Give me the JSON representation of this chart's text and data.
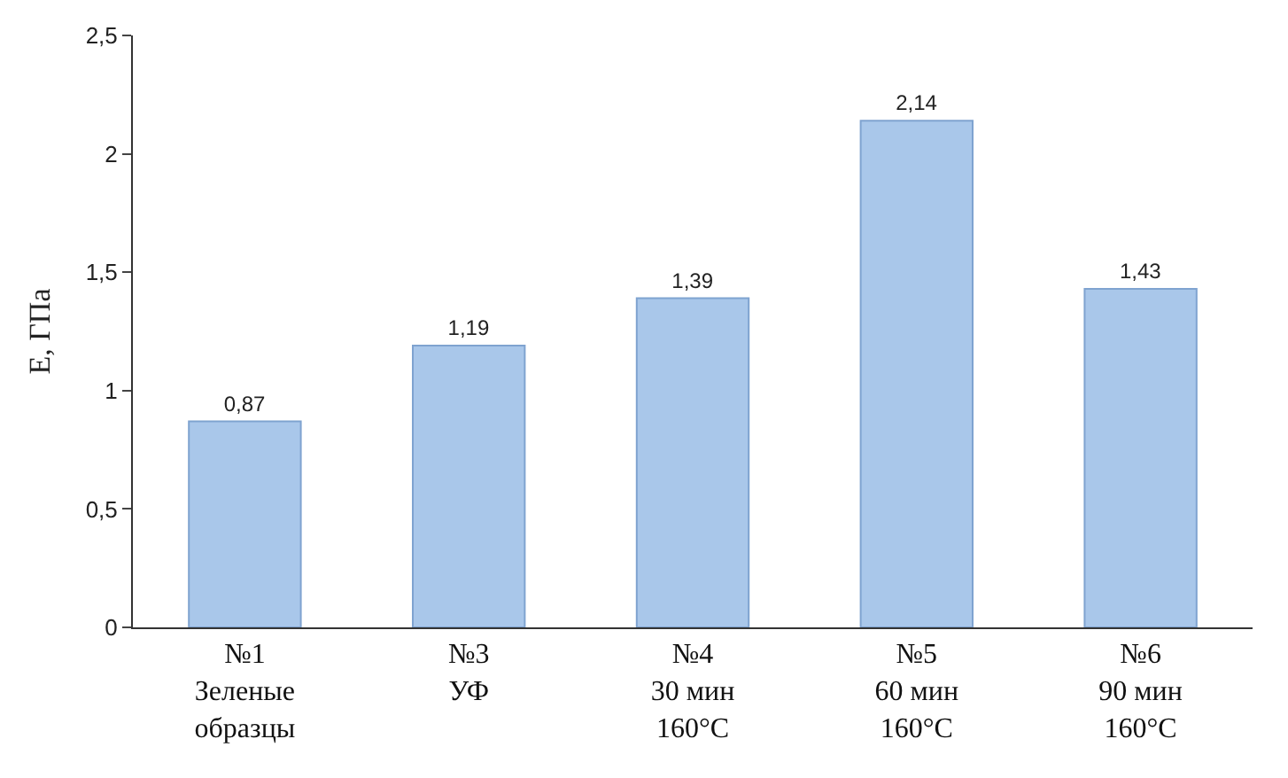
{
  "chart_data": {
    "type": "bar",
    "ylabel": "Е, ГПа",
    "categories": [
      "№1\nЗеленые\nобразцы",
      "№3\nУФ",
      "№4\n30 мин\n160°C",
      "№5\n60 мин\n160°C",
      "№6\n90 мин\n160°C"
    ],
    "values": [
      0.87,
      1.19,
      1.39,
      2.14,
      1.43
    ],
    "value_labels": [
      "0,87",
      "1,19",
      "1,39",
      "2,14",
      "1,43"
    ],
    "color": "#a9c7ea",
    "ylim": [
      0,
      2.5
    ],
    "yticks": [
      0,
      {
        "value": 0.5,
        "label": "0,5"
      },
      1,
      {
        "value": 1.5,
        "label": "1,5"
      },
      2,
      {
        "value": 2.5,
        "label": "2,5"
      }
    ],
    "tick_labels": true
  }
}
